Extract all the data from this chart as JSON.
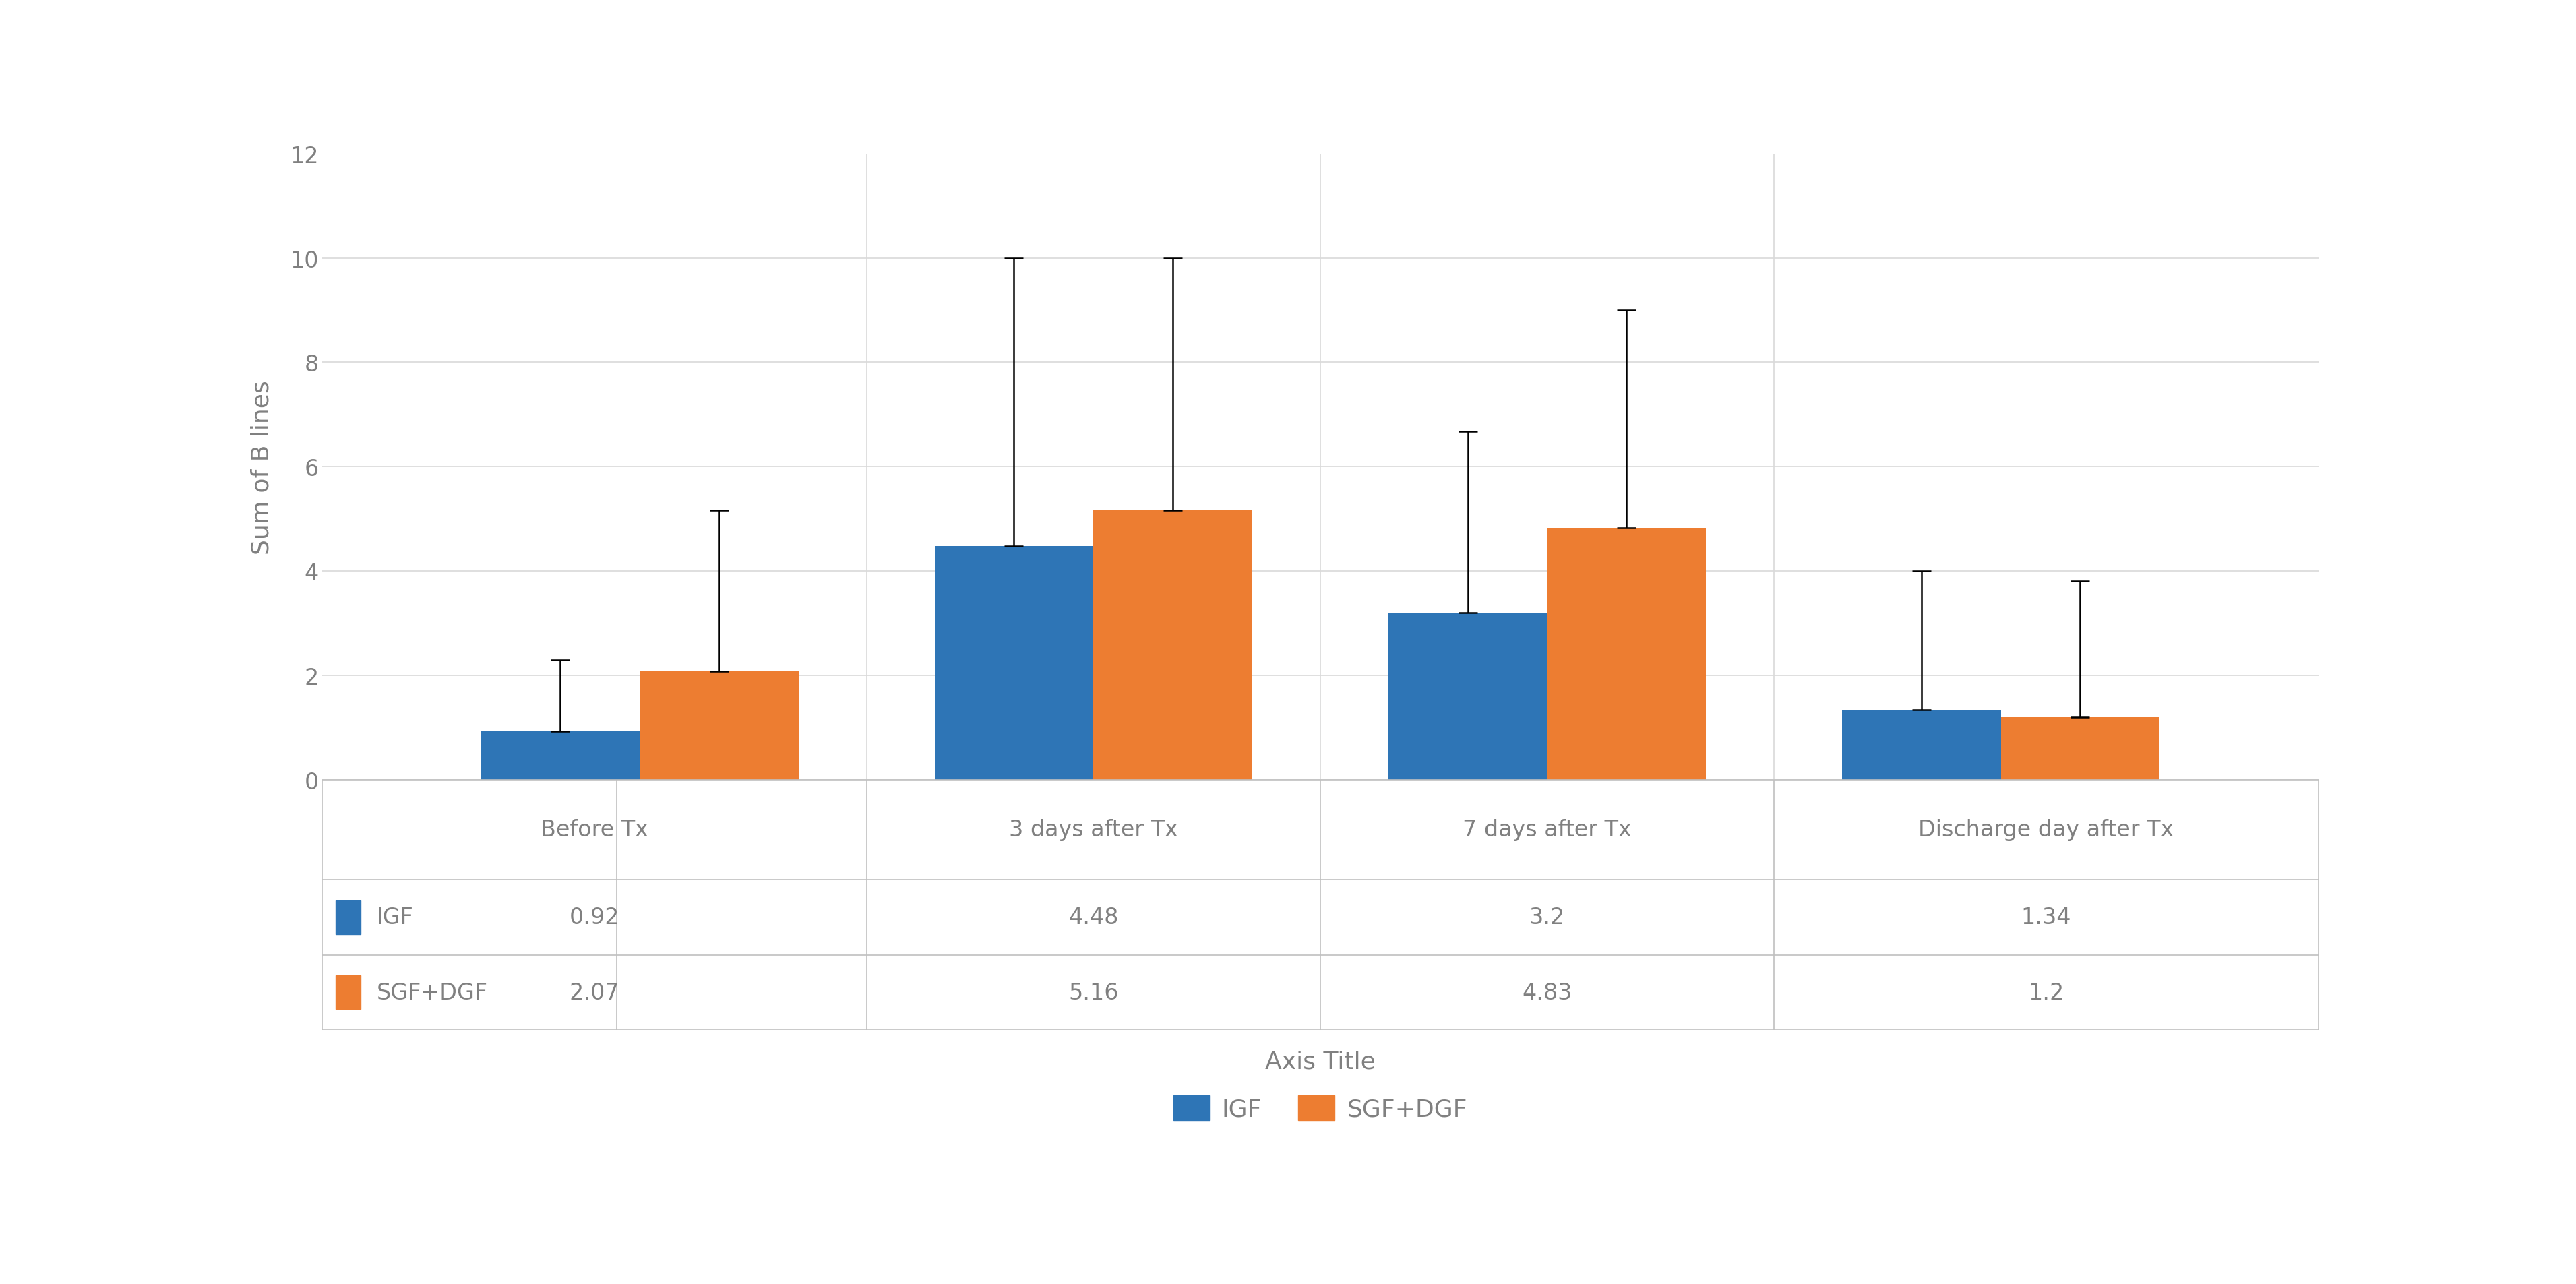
{
  "categories": [
    "Before Tx",
    "3 days after Tx",
    "7 days after Tx",
    "Discharge day after Tx"
  ],
  "igf_values": [
    0.92,
    4.48,
    3.2,
    1.34
  ],
  "sgf_values": [
    2.07,
    5.16,
    4.83,
    1.2
  ],
  "igf_errors_upper": [
    1.38,
    5.52,
    3.48,
    2.66
  ],
  "sgf_errors_upper": [
    3.09,
    4.84,
    4.17,
    2.6
  ],
  "igf_color": "#2E75B6",
  "sgf_color": "#ED7D31",
  "ylabel": "Sum of B lines",
  "xlabel": "Axis Title",
  "ylim": [
    0,
    12
  ],
  "yticks": [
    0,
    2,
    4,
    6,
    8,
    10,
    12
  ],
  "bar_width": 0.35,
  "background_color": "#FFFFFF",
  "grid_color": "#D9D9D9",
  "table_border_color": "#C0C0C0",
  "table_bg_color": "#F2F2F2",
  "legend_labels": [
    "IGF",
    "SGF+DGF"
  ],
  "table_igf_label": "IGF",
  "table_sgf_label": "SGF+DGF",
  "font_size_ticks": 24,
  "font_size_labels": 26,
  "font_size_legend": 26,
  "font_size_table": 24,
  "text_color": "#808080",
  "val_labels_igf": [
    "0.92",
    "4.48",
    "3.2",
    "1.34"
  ],
  "val_labels_sgf": [
    "2.07",
    "5.16",
    "4.83",
    "1.2"
  ]
}
